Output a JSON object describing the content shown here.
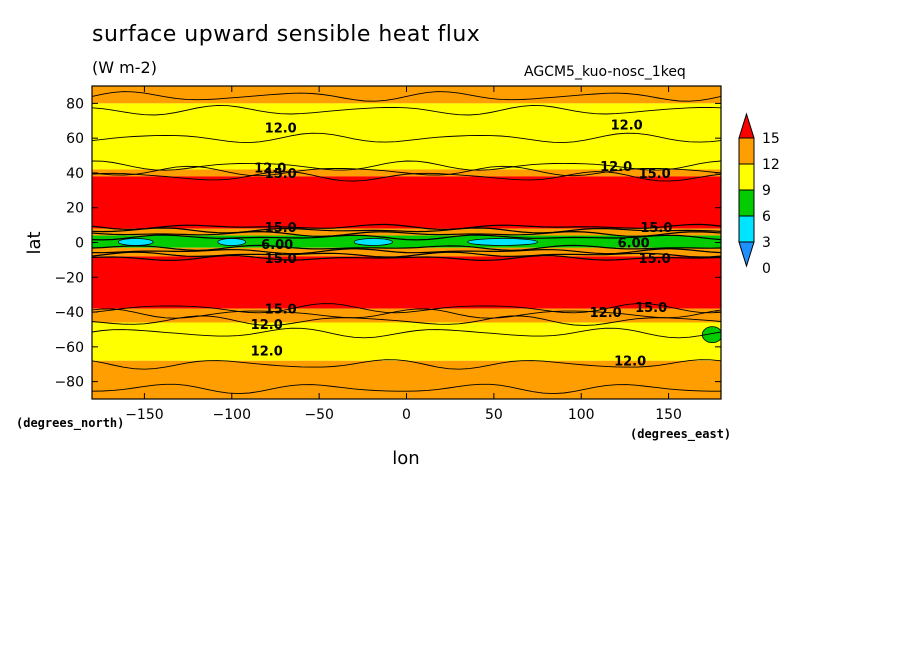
{
  "title": "surface upward sensible heat flux",
  "units": "(W m-2)",
  "run_name": "AGCM5_kuo-nosc_1keq",
  "chart_data": {
    "type": "heatmap",
    "title": "surface upward sensible heat flux",
    "subtitle": "(W m-2)",
    "xlabel": "lon",
    "ylabel": "lat",
    "x_units_label": "(degrees_east)",
    "y_units_label": "(degrees_north)",
    "xlim": [
      -180,
      180
    ],
    "ylim": [
      -90,
      90
    ],
    "xticks": [
      -150,
      -100,
      -50,
      0,
      50,
      100,
      150
    ],
    "yticks": [
      80,
      60,
      40,
      20,
      0,
      -20,
      -40,
      -60,
      -80
    ],
    "colorbar": {
      "levels": [
        0,
        3,
        6,
        9,
        12,
        15
      ],
      "labels": [
        "0",
        "3",
        "6",
        "9",
        "12",
        "15"
      ],
      "colors": [
        "#1e90ff",
        "#00e5ff",
        "#00cc00",
        "#ffff00",
        "#ff9e00",
        "#ff0000"
      ],
      "extend": "both"
    },
    "bands": [
      {
        "lat_from": 90,
        "lat_to": 80,
        "value_range": "12-15",
        "color": "#ff9e00"
      },
      {
        "lat_from": 80,
        "lat_to": 42,
        "value_range": "9-12",
        "color": "#ffff00"
      },
      {
        "lat_from": 42,
        "lat_to": 38,
        "value_range": "12-15",
        "color": "#ff9e00"
      },
      {
        "lat_from": 38,
        "lat_to": 8,
        "value_range": ">15",
        "color": "#ff0000"
      },
      {
        "lat_from": 8,
        "lat_to": 4,
        "value_range": "9-15",
        "color": "#ff9e00"
      },
      {
        "lat_from": 4,
        "lat_to": -3,
        "value_range": "3-9",
        "color": "#00cc00"
      },
      {
        "lat_from": -3,
        "lat_to": -8,
        "value_range": "9-15",
        "color": "#ff9e00"
      },
      {
        "lat_from": -8,
        "lat_to": -38,
        "value_range": ">15",
        "color": "#ff0000"
      },
      {
        "lat_from": -38,
        "lat_to": -46,
        "value_range": "12-15",
        "color": "#ff9e00"
      },
      {
        "lat_from": -46,
        "lat_to": -68,
        "value_range": "9-12",
        "color": "#ffff00"
      },
      {
        "lat_from": -68,
        "lat_to": -90,
        "value_range": "12-15",
        "color": "#ff9e00"
      }
    ],
    "contour_labels": [
      {
        "text": "12.0",
        "lon": -72,
        "lat": 66
      },
      {
        "text": "12.0",
        "lon": 126,
        "lat": 68
      },
      {
        "text": "12.0",
        "lon": -78,
        "lat": 43
      },
      {
        "text": "15.0",
        "lon": -72,
        "lat": 40
      },
      {
        "text": "12.0",
        "lon": 120,
        "lat": 44
      },
      {
        "text": "15.0",
        "lon": 142,
        "lat": 40
      },
      {
        "text": "15.0",
        "lon": -72,
        "lat": 9
      },
      {
        "text": "15.0",
        "lon": 143,
        "lat": 9
      },
      {
        "text": "6.00",
        "lon": -74,
        "lat": -1
      },
      {
        "text": "6.00",
        "lon": 130,
        "lat": 0
      },
      {
        "text": "15.0",
        "lon": -72,
        "lat": -9
      },
      {
        "text": "15.0",
        "lon": 142,
        "lat": -9
      },
      {
        "text": "15.0",
        "lon": -72,
        "lat": -38
      },
      {
        "text": "12.0",
        "lon": -80,
        "lat": -47
      },
      {
        "text": "12.0",
        "lon": 114,
        "lat": -40
      },
      {
        "text": "15.0",
        "lon": 140,
        "lat": -37
      },
      {
        "text": "12.0",
        "lon": -80,
        "lat": -62
      },
      {
        "text": "12.0",
        "lon": 128,
        "lat": -68
      }
    ]
  }
}
